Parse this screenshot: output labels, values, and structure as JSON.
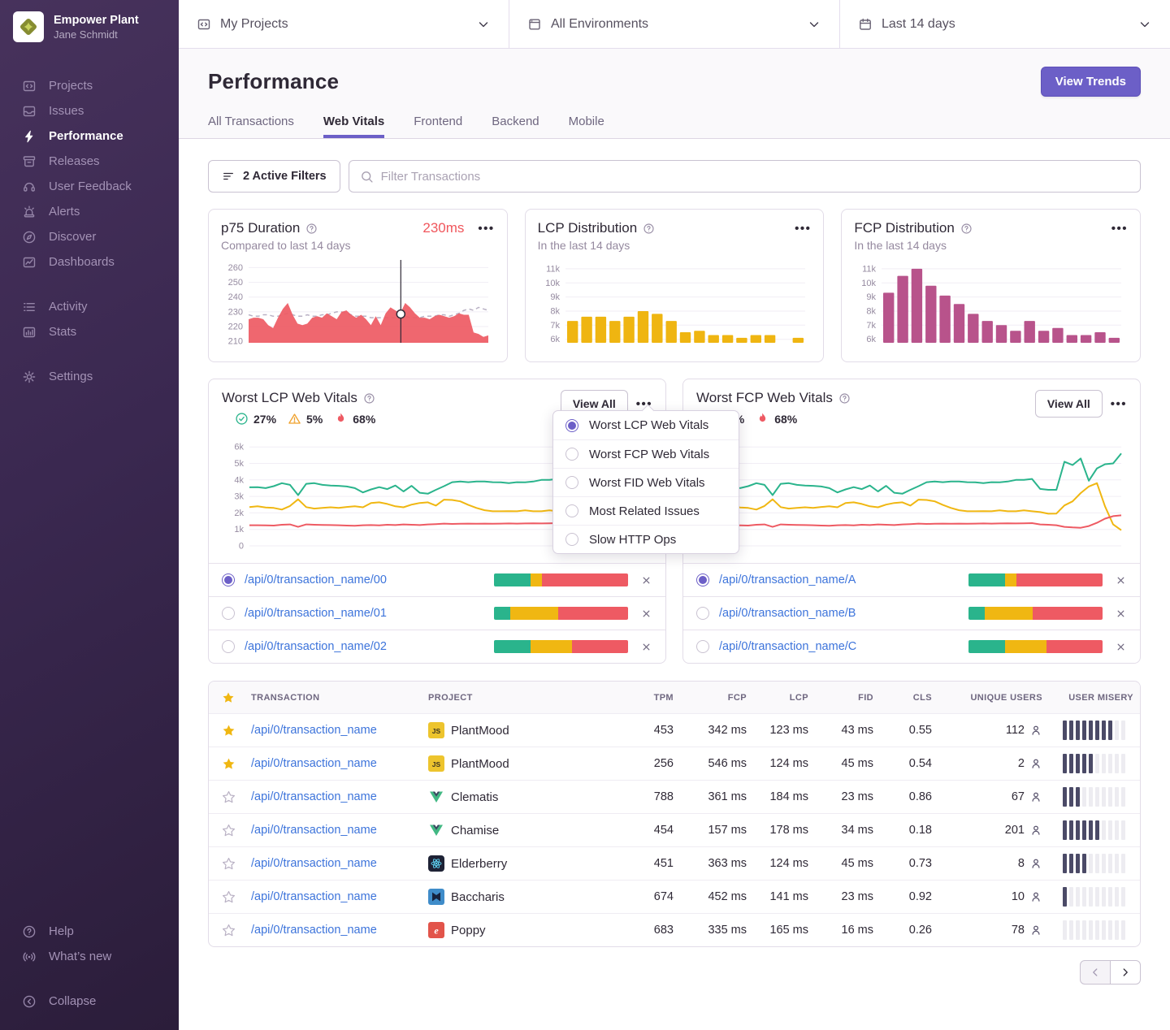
{
  "colors": {
    "accent": "#6c5fc7",
    "good": "#2ab48c",
    "meh": "#f0b712",
    "poor": "#ef5d64",
    "pink": "#b8538b",
    "link": "#3d74db",
    "misery": "#4b4a67"
  },
  "sidebar": {
    "org": "Empower Plant",
    "user": "Jane Schmidt",
    "groups": [
      {
        "items": [
          {
            "icon": "projects",
            "label": "Projects",
            "active": false
          },
          {
            "icon": "issues",
            "label": "Issues",
            "active": false
          },
          {
            "icon": "performance",
            "label": "Performance",
            "active": true
          },
          {
            "icon": "releases",
            "label": "Releases",
            "active": false
          },
          {
            "icon": "feedback",
            "label": "User Feedback",
            "active": false
          },
          {
            "icon": "alerts",
            "label": "Alerts",
            "active": false
          },
          {
            "icon": "discover",
            "label": "Discover",
            "active": false
          },
          {
            "icon": "dashboards",
            "label": "Dashboards",
            "active": false
          }
        ]
      },
      {
        "items": [
          {
            "icon": "activity",
            "label": "Activity",
            "active": false
          },
          {
            "icon": "stats",
            "label": "Stats",
            "active": false
          }
        ]
      },
      {
        "items": [
          {
            "icon": "settings",
            "label": "Settings",
            "active": false
          }
        ]
      }
    ],
    "footer_items": [
      {
        "icon": "help",
        "label": "Help"
      },
      {
        "icon": "whatsnew",
        "label": "What’s new"
      }
    ],
    "collapse": {
      "icon": "collapse",
      "label": "Collapse"
    }
  },
  "topbar": {
    "selectors": [
      {
        "icon": "projects",
        "label": "My Projects"
      },
      {
        "icon": "window",
        "label": "All Environments"
      },
      {
        "icon": "calendar",
        "label": "Last 14 days"
      }
    ]
  },
  "header": {
    "title": "Performance",
    "view_trends_label": "View Trends",
    "tabs": [
      {
        "label": "All Transactions",
        "active": false
      },
      {
        "label": "Web Vitals",
        "active": true
      },
      {
        "label": "Frontend",
        "active": false
      },
      {
        "label": "Backend",
        "active": false
      },
      {
        "label": "Mobile",
        "active": false
      }
    ]
  },
  "filters": {
    "active_filters_label": "2 Active Filters",
    "search_placeholder": "Filter Transactions"
  },
  "chart_data": [
    {
      "id": "p75",
      "type": "area",
      "title": "p75 Duration",
      "subtitle": "Compared to last 14 days",
      "value": "230ms",
      "ylim": [
        209,
        263
      ],
      "yticks": [
        {
          "v": 210,
          "label": "210"
        },
        {
          "v": 220,
          "label": "220"
        },
        {
          "v": 230,
          "label": "230"
        },
        {
          "v": 240,
          "label": "240"
        },
        {
          "v": 250,
          "label": "250"
        },
        {
          "v": 260,
          "label": "260"
        }
      ],
      "marker": {
        "fraction": 0.635,
        "value": 228.5
      },
      "series": [
        {
          "name": "current",
          "color": "#ee5a63",
          "values": [
            225,
            226,
            226,
            225,
            221,
            219,
            226,
            232,
            236,
            228,
            222,
            221,
            222,
            226,
            227,
            226,
            229,
            227,
            225,
            230,
            231,
            228,
            226,
            228,
            225,
            221,
            227,
            221,
            229,
            233,
            231,
            229,
            236,
            233,
            229,
            226,
            226,
            225,
            227,
            228,
            227,
            226,
            227,
            229,
            228,
            228,
            216,
            215,
            213,
            214
          ]
        },
        {
          "name": "previous",
          "color": "#b9b1c4",
          "values": [
            228,
            227,
            227,
            228,
            228,
            227,
            227,
            228,
            229,
            228,
            227,
            227,
            228,
            227,
            227,
            228,
            228,
            229,
            230,
            230,
            229,
            228,
            227,
            227,
            227,
            226,
            226,
            226,
            226,
            226,
            226,
            227,
            227,
            226,
            226,
            226,
            227,
            227,
            227,
            228,
            228,
            227,
            228,
            229,
            231,
            232,
            231,
            233,
            232,
            231
          ]
        }
      ]
    },
    {
      "id": "lcp-distribution",
      "type": "bar",
      "title": "LCP Distribution",
      "subtitle": "In the last 14 days",
      "color": "#efb511",
      "ylim": [
        5750,
        11400
      ],
      "yticks": [
        {
          "v": 6000,
          "label": "6k"
        },
        {
          "v": 7000,
          "label": "7k"
        },
        {
          "v": 8000,
          "label": "8k"
        },
        {
          "v": 9000,
          "label": "9k"
        },
        {
          "v": 10000,
          "label": "10k"
        },
        {
          "v": 11000,
          "label": "11k"
        }
      ],
      "values": [
        7300,
        7600,
        7600,
        7300,
        7600,
        8000,
        7800,
        7300,
        6500,
        6600,
        6300,
        6300,
        6100,
        6300,
        6300,
        0,
        6100
      ]
    },
    {
      "id": "fcp-distribution",
      "type": "bar",
      "title": "FCP Distribution",
      "subtitle": "In the last 14 days",
      "color": "#b8538b",
      "ylim": [
        5750,
        11400
      ],
      "yticks": [
        {
          "v": 6000,
          "label": "6k"
        },
        {
          "v": 7000,
          "label": "7k"
        },
        {
          "v": 8000,
          "label": "8k"
        },
        {
          "v": 9000,
          "label": "9k"
        },
        {
          "v": 10000,
          "label": "10k"
        },
        {
          "v": 11000,
          "label": "11k"
        }
      ],
      "values": [
        9300,
        10500,
        11000,
        9800,
        9100,
        8500,
        7800,
        7300,
        7000,
        6600,
        7300,
        6600,
        6800,
        6300,
        6300,
        6500,
        6100
      ]
    },
    {
      "id": "worst-lcp",
      "type": "line",
      "ylim": [
        0,
        6500
      ],
      "yticks": [
        {
          "v": 0,
          "label": "0"
        },
        {
          "v": 1000,
          "label": "1k"
        },
        {
          "v": 2000,
          "label": "2k"
        },
        {
          "v": 3000,
          "label": "3k"
        },
        {
          "v": 4000,
          "label": "4k"
        },
        {
          "v": 5000,
          "label": "5k"
        },
        {
          "v": 6000,
          "label": "6k"
        }
      ],
      "series": [
        {
          "name": "good",
          "color": "#2ab48c",
          "values": [
            3550,
            3560,
            3500,
            3620,
            3800,
            3700,
            3080,
            3760,
            3800,
            3700,
            3660,
            3640,
            3600,
            3500,
            3240,
            3420,
            3560,
            3440,
            3660,
            3300,
            3640,
            3220,
            3160,
            3400,
            3620,
            3860,
            3900,
            3860,
            3900,
            3900,
            3860,
            3850,
            3800,
            3860,
            3850,
            3900,
            4000,
            4000,
            4060,
            3450,
            3400,
            3400,
            5100,
            4900,
            5300,
            3950,
            4700,
            4950,
            5000,
            5600
          ]
        },
        {
          "name": "meh",
          "color": "#f0b712",
          "values": [
            2350,
            2400,
            2330,
            2300,
            2200,
            2420,
            2820,
            2350,
            2260,
            2300,
            2340,
            2300,
            2360,
            2400,
            2340,
            2600,
            2640,
            2540,
            2400,
            2340,
            2500,
            2600,
            2640,
            2440,
            2800,
            2780,
            2700,
            2480,
            2300,
            2160,
            2100,
            2100,
            2110,
            2100,
            2150,
            2100,
            2100,
            2150,
            2100,
            2050,
            1950,
            1960,
            2450,
            2700,
            3200,
            3600,
            3800,
            2400,
            1300,
            950
          ]
        },
        {
          "name": "poor",
          "color": "#ee5a63",
          "values": [
            1250,
            1250,
            1240,
            1230,
            1280,
            1300,
            1150,
            1300,
            1280,
            1270,
            1260,
            1250,
            1230,
            1220,
            1250,
            1260,
            1240,
            1280,
            1260,
            1300,
            1280,
            1260,
            1300,
            1320,
            1350,
            1330,
            1340,
            1350,
            1340,
            1350,
            1340,
            1350,
            1360,
            1350,
            1360,
            1370,
            1360,
            1370,
            1380,
            1300,
            1280,
            1250,
            1150,
            1120,
            1100,
            1200,
            1400,
            1650,
            1800,
            1850
          ]
        }
      ]
    },
    {
      "id": "worst-fcp",
      "type": "line",
      "ylim": [
        0,
        6500
      ],
      "yticks": [
        {
          "v": 0,
          "label": "0"
        },
        {
          "v": 1000,
          "label": "1k"
        },
        {
          "v": 2000,
          "label": "2k"
        },
        {
          "v": 3000,
          "label": "3k"
        },
        {
          "v": 4000,
          "label": "4k"
        },
        {
          "v": 5000,
          "label": "5k"
        },
        {
          "v": 6000,
          "label": "6k"
        }
      ],
      "series": [
        {
          "name": "good",
          "color": "#2ab48c",
          "values": [
            3550,
            3560,
            3500,
            3620,
            3800,
            3700,
            3080,
            3760,
            3800,
            3700,
            3660,
            3640,
            3600,
            3500,
            3240,
            3420,
            3560,
            3440,
            3660,
            3300,
            3640,
            3220,
            3160,
            3400,
            3620,
            3860,
            3900,
            3860,
            3900,
            3900,
            3860,
            3850,
            3800,
            3860,
            3850,
            3900,
            4000,
            4000,
            4060,
            3450,
            3400,
            3400,
            5100,
            4900,
            5300,
            3950,
            4700,
            4950,
            5000,
            5600
          ]
        },
        {
          "name": "meh",
          "color": "#f0b712",
          "values": [
            2350,
            2400,
            2330,
            2300,
            2200,
            2420,
            2820,
            2350,
            2260,
            2300,
            2340,
            2300,
            2360,
            2400,
            2340,
            2600,
            2640,
            2540,
            2400,
            2340,
            2500,
            2600,
            2640,
            2440,
            2800,
            2780,
            2700,
            2480,
            2300,
            2160,
            2100,
            2100,
            2110,
            2100,
            2150,
            2100,
            2100,
            2150,
            2100,
            2050,
            1950,
            1960,
            2450,
            2700,
            3200,
            3600,
            3800,
            2400,
            1300,
            950
          ]
        },
        {
          "name": "poor",
          "color": "#ee5a63",
          "values": [
            1250,
            1250,
            1240,
            1230,
            1280,
            1300,
            1150,
            1300,
            1280,
            1270,
            1260,
            1250,
            1230,
            1220,
            1250,
            1260,
            1240,
            1280,
            1260,
            1300,
            1280,
            1260,
            1300,
            1320,
            1350,
            1330,
            1340,
            1350,
            1340,
            1350,
            1340,
            1350,
            1360,
            1350,
            1360,
            1370,
            1360,
            1370,
            1380,
            1300,
            1280,
            1250,
            1150,
            1120,
            1100,
            1200,
            1400,
            1650,
            1800,
            1850
          ]
        }
      ]
    }
  ],
  "vitals_cards": [
    {
      "title": "Worst LCP Web Vitals",
      "view_all_label": "View All",
      "chart_index": 3,
      "stats": [
        {
          "type": "good",
          "value": "27%"
        },
        {
          "type": "meh",
          "value": "5%"
        },
        {
          "type": "poor",
          "value": "68%"
        }
      ],
      "transactions": [
        {
          "name": "/api/0/transaction_name/00",
          "selected": true,
          "bar": [
            27,
            9,
            64
          ]
        },
        {
          "name": "/api/0/transaction_name/01",
          "selected": false,
          "bar": [
            12,
            36,
            52
          ]
        },
        {
          "name": "/api/0/transaction_name/02",
          "selected": false,
          "bar": [
            27,
            31,
            42
          ]
        }
      ]
    },
    {
      "title": "Worst FCP Web Vitals",
      "view_all_label": "View All",
      "chart_index": 4,
      "stats": [
        {
          "type": "meh",
          "value": "5%"
        },
        {
          "type": "poor",
          "value": "68%"
        }
      ],
      "transactions": [
        {
          "name": "/api/0/transaction_name/A",
          "selected": true,
          "bar": [
            27,
            9,
            64
          ]
        },
        {
          "name": "/api/0/transaction_name/B",
          "selected": false,
          "bar": [
            12,
            36,
            52
          ]
        },
        {
          "name": "/api/0/transaction_name/C",
          "selected": false,
          "bar": [
            27,
            31,
            42
          ]
        }
      ]
    }
  ],
  "dropdown": {
    "options": [
      {
        "label": "Worst LCP Web Vitals",
        "selected": true
      },
      {
        "label": "Worst FCP Web Vitals",
        "selected": false
      },
      {
        "label": "Worst FID Web Vitals",
        "selected": false
      },
      {
        "label": "Most Related Issues",
        "selected": false
      },
      {
        "label": "Slow HTTP Ops",
        "selected": false
      }
    ]
  },
  "table": {
    "columns": [
      "Transaction",
      "Project",
      "TPM",
      "FCP",
      "LCP",
      "FID",
      "CLS",
      "Unique Users",
      "User Misery"
    ],
    "rows": [
      {
        "starred": true,
        "transaction": "/api/0/transaction_name",
        "project": {
          "name": "PlantMood",
          "platform": "js"
        },
        "tpm": "453",
        "fcp": "342 ms",
        "lcp": "123 ms",
        "fid": "43 ms",
        "cls": "0.55",
        "users": "112",
        "misery": 8
      },
      {
        "starred": true,
        "transaction": "/api/0/transaction_name",
        "project": {
          "name": "PlantMood",
          "platform": "js"
        },
        "tpm": "256",
        "fcp": "546 ms",
        "lcp": "124 ms",
        "fid": "45 ms",
        "cls": "0.54",
        "users": "2",
        "misery": 5
      },
      {
        "starred": false,
        "transaction": "/api/0/transaction_name",
        "project": {
          "name": "Clematis",
          "platform": "vue"
        },
        "tpm": "788",
        "fcp": "361 ms",
        "lcp": "184 ms",
        "fid": "23 ms",
        "cls": "0.86",
        "users": "67",
        "misery": 3
      },
      {
        "starred": false,
        "transaction": "/api/0/transaction_name",
        "project": {
          "name": "Chamise",
          "platform": "vue"
        },
        "tpm": "454",
        "fcp": "157 ms",
        "lcp": "178 ms",
        "fid": "34 ms",
        "cls": "0.18",
        "users": "201",
        "misery": 6
      },
      {
        "starred": false,
        "transaction": "/api/0/transaction_name",
        "project": {
          "name": "Elderberry",
          "platform": "react"
        },
        "tpm": "451",
        "fcp": "363 ms",
        "lcp": "124 ms",
        "fid": "45 ms",
        "cls": "0.73",
        "users": "8",
        "misery": 4
      },
      {
        "starred": false,
        "transaction": "/api/0/transaction_name",
        "project": {
          "name": "Baccharis",
          "platform": "baccharis"
        },
        "tpm": "674",
        "fcp": "452 ms",
        "lcp": "141 ms",
        "fid": "23 ms",
        "cls": "0.92",
        "users": "10",
        "misery": 1
      },
      {
        "starred": false,
        "transaction": "/api/0/transaction_name",
        "project": {
          "name": "Poppy",
          "platform": "ember"
        },
        "tpm": "683",
        "fcp": "335 ms",
        "lcp": "165 ms",
        "fid": "16 ms",
        "cls": "0.26",
        "users": "78",
        "misery": 0
      }
    ]
  }
}
